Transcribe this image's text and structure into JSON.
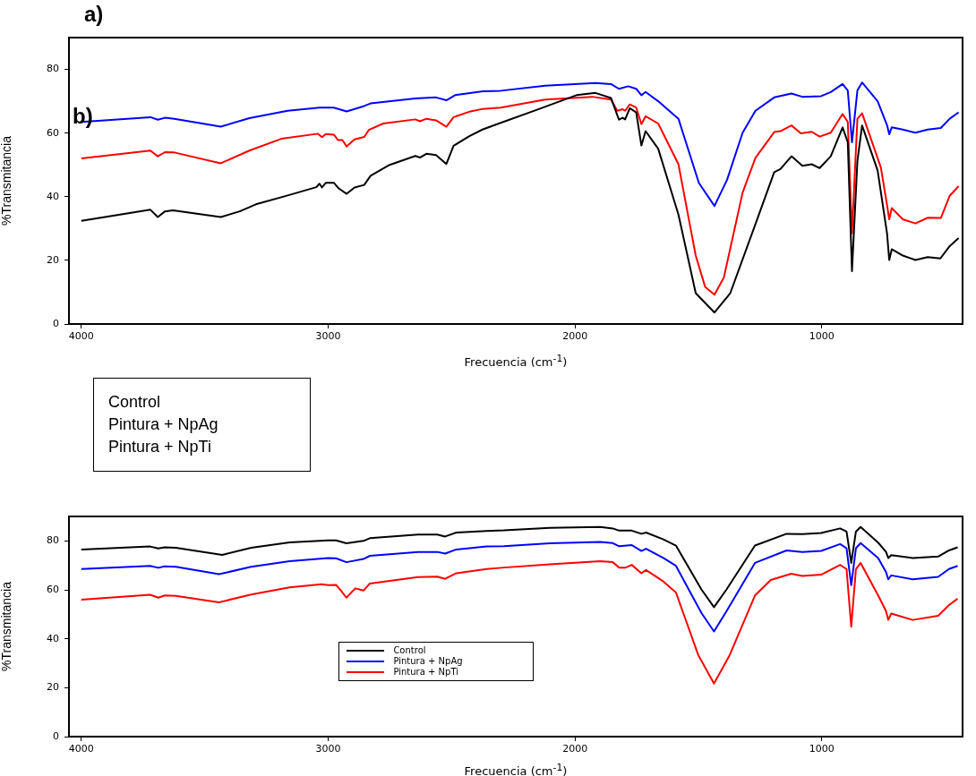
{
  "chart_data": [
    {
      "type": "line",
      "title": "a)",
      "xlabel": "Frecuencia (cm$^{-1}$)",
      "ylabel": "%Transmitancia",
      "annotations": [
        "b)",
        "Control",
        "Pintura + NpAg",
        "Pintura + NpTi"
      ],
      "xlim": [
        4050,
        430
      ],
      "xticks": [
        4000,
        3000,
        2000,
        1000
      ],
      "ylim": [
        0,
        90
      ],
      "yticks": [
        0,
        20,
        40,
        60,
        80
      ],
      "grid": false,
      "series": [
        {
          "color": "#000000",
          "x": [
            4000,
            3720,
            3690,
            3661,
            3629,
            3435,
            3358,
            3293,
            3164,
            3048,
            3035,
            3025,
            3009,
            2977,
            2957,
            2925,
            2893,
            2854,
            2828,
            2751,
            2647,
            2628,
            2602,
            2563,
            2521,
            2492,
            2428,
            2375,
            2301,
            2159,
            1994,
            1917,
            1854,
            1822,
            1807,
            1797,
            1778,
            1752,
            1731,
            1714,
            1663,
            1581,
            1511,
            1435,
            1371,
            1269,
            1193,
            1168,
            1123,
            1079,
            1041,
            1009,
            964,
            916,
            895,
            878,
            856,
            837,
            774,
            736,
            727,
            717,
            672,
            621,
            571,
            520,
            482,
            446
          ],
          "values": [
            32.4,
            35.9,
            33.6,
            35.4,
            35.7,
            33.6,
            35.4,
            37.6,
            40.4,
            43.0,
            44.1,
            42.9,
            44.4,
            44.4,
            42.6,
            40.9,
            42.9,
            43.7,
            46.6,
            50.0,
            52.8,
            52.3,
            53.5,
            53.1,
            50.3,
            56.0,
            59.0,
            61.1,
            63.2,
            67.2,
            71.9,
            72.6,
            71.0,
            64.2,
            64.8,
            64.3,
            67.8,
            66.5,
            56.1,
            60.6,
            55.1,
            34.4,
            9.7,
            3.6,
            9.7,
            31.4,
            47.7,
            48.7,
            52.7,
            49.7,
            50.2,
            49.0,
            52.7,
            61.8,
            57.1,
            16.6,
            51.2,
            62.4,
            48.2,
            28.5,
            20.1,
            23.5,
            21.5,
            20.1,
            21.0,
            20.6,
            24.5,
            27.0
          ]
        },
        {
          "color": "#0000ff",
          "x": [
            4000,
            3720,
            3690,
            3661,
            3623,
            3435,
            3319,
            3164,
            3035,
            2977,
            2925,
            2854,
            2828,
            2647,
            2563,
            2521,
            2486,
            2373,
            2301,
            2121,
            1917,
            1854,
            1822,
            1784,
            1752,
            1731,
            1714,
            1663,
            1581,
            1498,
            1435,
            1384,
            1321,
            1269,
            1193,
            1123,
            1079,
            1003,
            964,
            916,
            895,
            878,
            856,
            837,
            774,
            736,
            727,
            717,
            672,
            621,
            571,
            518,
            482,
            446
          ],
          "values": [
            63.5,
            65.0,
            64.2,
            64.8,
            64.5,
            62.0,
            64.7,
            67.0,
            68.0,
            68.0,
            66.8,
            68.5,
            69.3,
            70.9,
            71.2,
            70.3,
            71.9,
            73.1,
            73.3,
            74.9,
            75.7,
            75.4,
            73.9,
            74.7,
            73.9,
            71.9,
            72.9,
            70.0,
            64.5,
            44.3,
            37.1,
            45.3,
            60.1,
            67.0,
            71.2,
            72.4,
            71.4,
            71.6,
            72.9,
            75.4,
            73.4,
            57.1,
            73.4,
            75.9,
            70.0,
            62.5,
            59.6,
            61.8,
            61.1,
            60.1,
            61.1,
            61.6,
            64.5,
            66.5
          ]
        },
        {
          "color": "#ff0000",
          "x": [
            4000,
            3720,
            3690,
            3661,
            3623,
            3435,
            3319,
            3190,
            3041,
            3025,
            3009,
            2977,
            2960,
            2942,
            2925,
            2893,
            2854,
            2835,
            2777,
            2647,
            2628,
            2602,
            2563,
            2521,
            2492,
            2428,
            2373,
            2301,
            2121,
            1930,
            1854,
            1829,
            1807,
            1797,
            1778,
            1752,
            1731,
            1714,
            1663,
            1581,
            1511,
            1473,
            1435,
            1397,
            1321,
            1269,
            1193,
            1168,
            1123,
            1085,
            1041,
            1009,
            964,
            916,
            895,
            878,
            856,
            837,
            761,
            736,
            727,
            717,
            672,
            621,
            571,
            518,
            482,
            446
          ],
          "values": [
            52.0,
            54.5,
            52.7,
            54.0,
            53.9,
            50.5,
            54.5,
            58.2,
            59.8,
            58.7,
            59.7,
            59.5,
            57.8,
            57.8,
            55.8,
            58.0,
            58.8,
            61.0,
            63.0,
            64.3,
            63.7,
            64.5,
            64.0,
            62.0,
            65.0,
            66.7,
            67.6,
            68.0,
            70.5,
            71.4,
            70.5,
            67.0,
            67.5,
            67.0,
            69.0,
            68.0,
            62.8,
            65.3,
            63.0,
            50.2,
            21.5,
            11.7,
            9.2,
            14.6,
            41.3,
            52.2,
            60.3,
            60.6,
            62.4,
            59.9,
            60.4,
            58.9,
            60.1,
            66.0,
            63.5,
            28.5,
            64.5,
            66.2,
            49.2,
            37.4,
            32.9,
            36.4,
            32.9,
            31.6,
            33.4,
            33.3,
            40.3,
            43.3
          ]
        }
      ]
    },
    {
      "type": "line",
      "xlabel": "Frecuencia (cm$^{-1}$)",
      "ylabel": "%Transmitancia",
      "xlim": [
        4050,
        430
      ],
      "xticks": [
        4000,
        3000,
        2000,
        1000
      ],
      "ylim": [
        0,
        90
      ],
      "yticks": [
        0,
        20,
        40,
        60,
        80
      ],
      "grid": false,
      "legend": "bottom",
      "series": [
        {
          "name": "Control",
          "color": "#000000",
          "x": [
            4000,
            3721,
            3688,
            3662,
            3617,
            3429,
            3312,
            3156,
            3000,
            2968,
            2926,
            2857,
            2831,
            2636,
            2558,
            2526,
            2481,
            2358,
            2288,
            2102,
            1898,
            1847,
            1821,
            1770,
            1731,
            1712,
            1642,
            1591,
            1488,
            1437,
            1386,
            1271,
            1143,
            1079,
            1003,
            926,
            900,
            881,
            862,
            843,
            772,
            740,
            731,
            719,
            632,
            529,
            485,
            450
          ],
          "values": [
            76.5,
            77.7,
            76.9,
            77.4,
            77.2,
            74.3,
            77.2,
            79.4,
            80.2,
            80.2,
            79.0,
            80.0,
            81.1,
            82.6,
            82.6,
            81.8,
            83.4,
            84.1,
            84.3,
            85.3,
            85.7,
            85.1,
            84.2,
            84.2,
            82.9,
            83.4,
            80.6,
            78.1,
            60.2,
            52.9,
            60.2,
            78.1,
            82.9,
            82.8,
            83.2,
            85.1,
            83.8,
            71.0,
            83.8,
            85.7,
            79.3,
            75.5,
            73.0,
            74.2,
            73.0,
            73.6,
            76.1,
            77.4
          ]
        },
        {
          "name": "Pintura + NpAg",
          "color": "#0000ff",
          "x": [
            4000,
            3721,
            3688,
            3662,
            3617,
            3442,
            3312,
            3156,
            3000,
            2968,
            2926,
            2857,
            2831,
            2636,
            2558,
            2526,
            2481,
            2358,
            2288,
            2102,
            1898,
            1847,
            1821,
            1770,
            1731,
            1712,
            1642,
            1591,
            1488,
            1437,
            1386,
            1271,
            1143,
            1079,
            1003,
            926,
            900,
            881,
            862,
            843,
            772,
            740,
            731,
            719,
            632,
            529,
            485,
            450
          ],
          "values": [
            68.5,
            69.8,
            69.0,
            69.6,
            69.4,
            66.4,
            69.4,
            71.7,
            73.0,
            72.9,
            71.3,
            72.6,
            73.9,
            75.5,
            75.5,
            74.8,
            76.5,
            77.7,
            77.8,
            79.0,
            79.6,
            79.1,
            77.8,
            78.3,
            75.9,
            76.8,
            73.0,
            69.8,
            50.6,
            43.0,
            51.3,
            71.0,
            76.1,
            75.5,
            75.9,
            78.7,
            77.0,
            61.9,
            77.0,
            79.1,
            73.0,
            67.2,
            64.3,
            65.9,
            64.3,
            65.3,
            68.5,
            69.8
          ]
        },
        {
          "name": "Pintura + NpTi",
          "color": "#ff0000",
          "x": [
            4000,
            3721,
            3688,
            3662,
            3617,
            3442,
            3312,
            3156,
            3026,
            3000,
            2968,
            2948,
            2926,
            2890,
            2857,
            2831,
            2636,
            2558,
            2526,
            2481,
            2358,
            2288,
            2102,
            1898,
            1847,
            1821,
            1795,
            1770,
            1731,
            1712,
            1642,
            1591,
            1501,
            1437,
            1373,
            1271,
            1207,
            1124,
            1079,
            1003,
            926,
            900,
            881,
            862,
            843,
            772,
            740,
            731,
            719,
            632,
            529,
            485,
            450
          ],
          "values": [
            56.0,
            58.0,
            56.8,
            57.7,
            57.5,
            54.9,
            58.1,
            61.0,
            62.3,
            61.9,
            62.0,
            59.7,
            56.8,
            60.6,
            59.7,
            62.6,
            65.2,
            65.4,
            64.5,
            66.8,
            68.5,
            69.1,
            70.4,
            71.7,
            71.3,
            69.1,
            69.1,
            70.2,
            66.8,
            68.1,
            63.4,
            58.9,
            33.4,
            21.7,
            33.4,
            57.7,
            64.0,
            66.6,
            65.7,
            66.2,
            70.2,
            68.5,
            44.9,
            68.5,
            71.0,
            57.7,
            51.3,
            47.7,
            50.3,
            47.7,
            49.4,
            53.8,
            56.4
          ]
        }
      ]
    }
  ]
}
